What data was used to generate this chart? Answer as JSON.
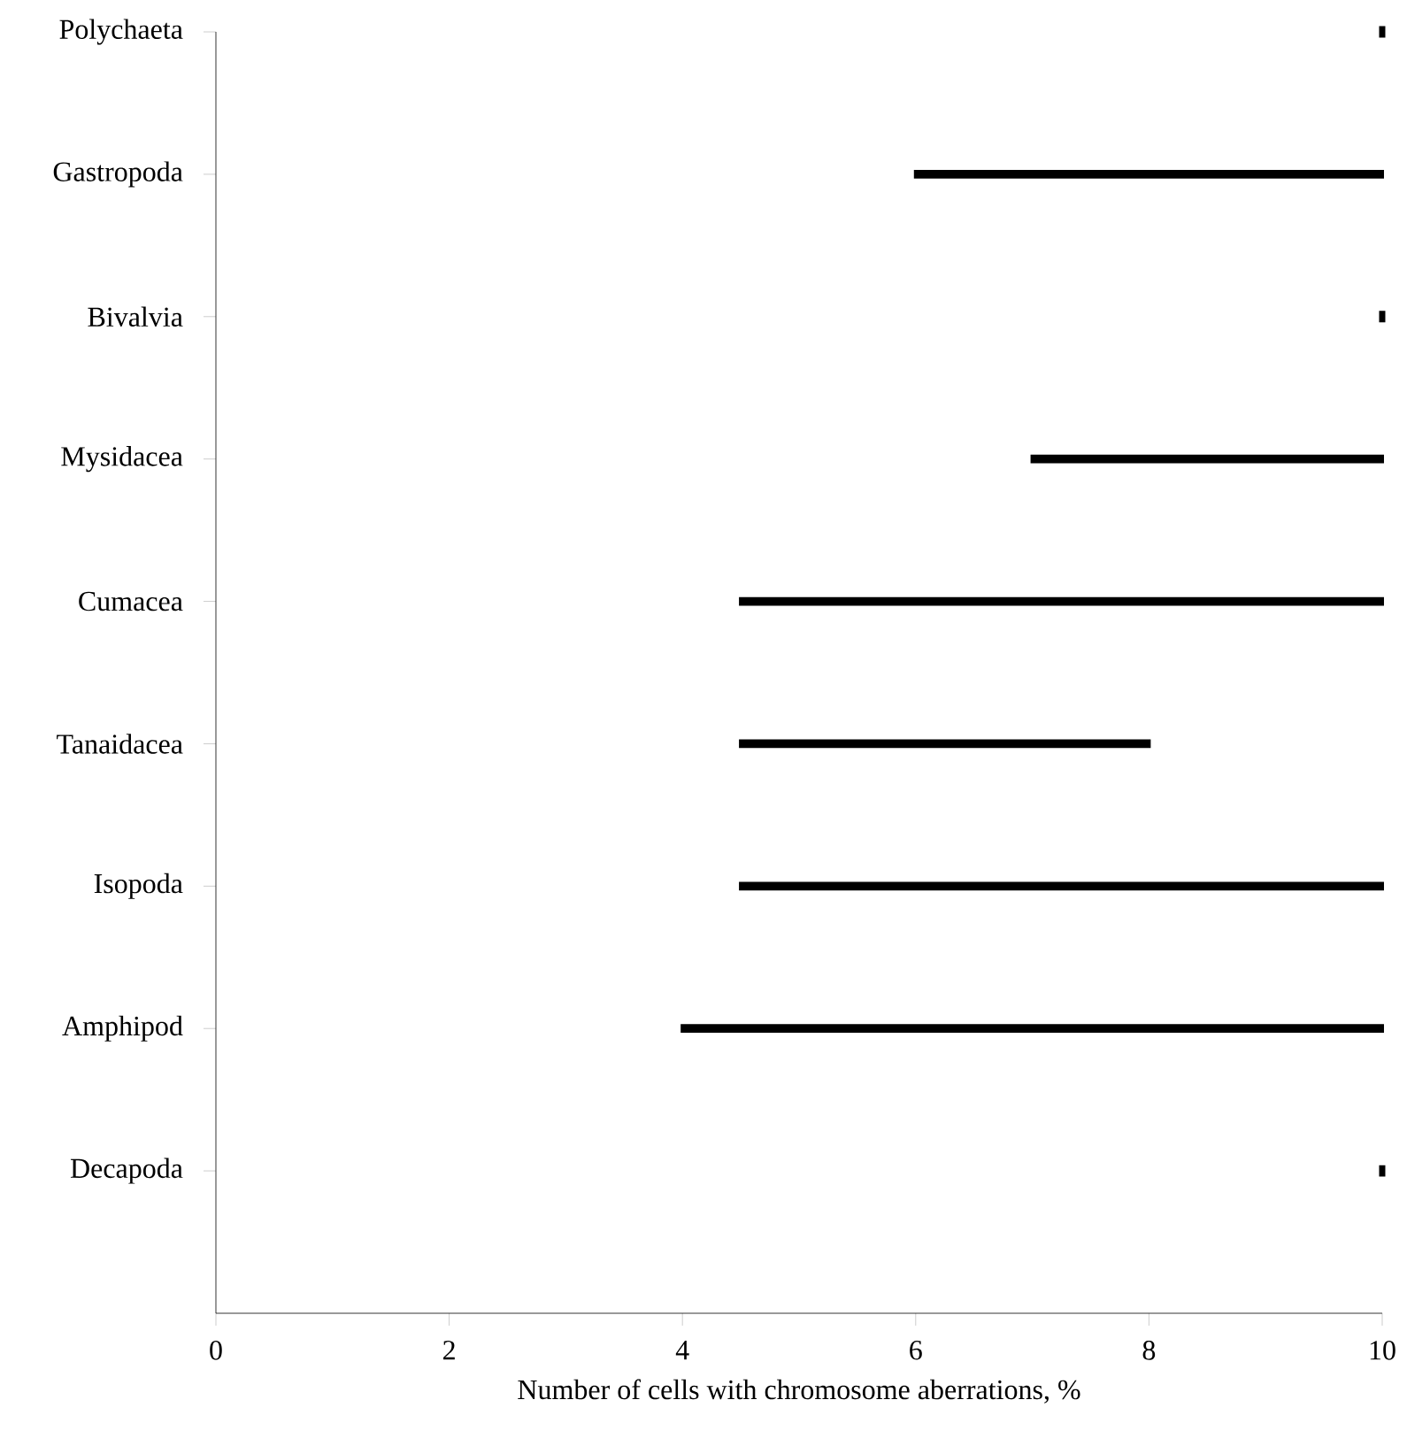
{
  "chart_data": {
    "type": "bar",
    "orientation": "horizontal",
    "xlabel": "Number of cells with chromosome aberrations, %",
    "categories": [
      "Polychaeta",
      "Gastropoda",
      "Bivalvia",
      "Mysidacea",
      "Cumacea",
      "Tanaidacea",
      "Isopoda",
      "Amphipod",
      "Decapoda"
    ],
    "base": [
      10,
      6,
      10,
      7,
      4.5,
      4.5,
      4.5,
      4,
      10
    ],
    "values": [
      0,
      4,
      0,
      3,
      5.5,
      3.5,
      5.5,
      6,
      0
    ],
    "color": "#000000",
    "xlim": [
      0,
      10
    ],
    "xticks": [
      0,
      2,
      4,
      6,
      8,
      10
    ]
  }
}
